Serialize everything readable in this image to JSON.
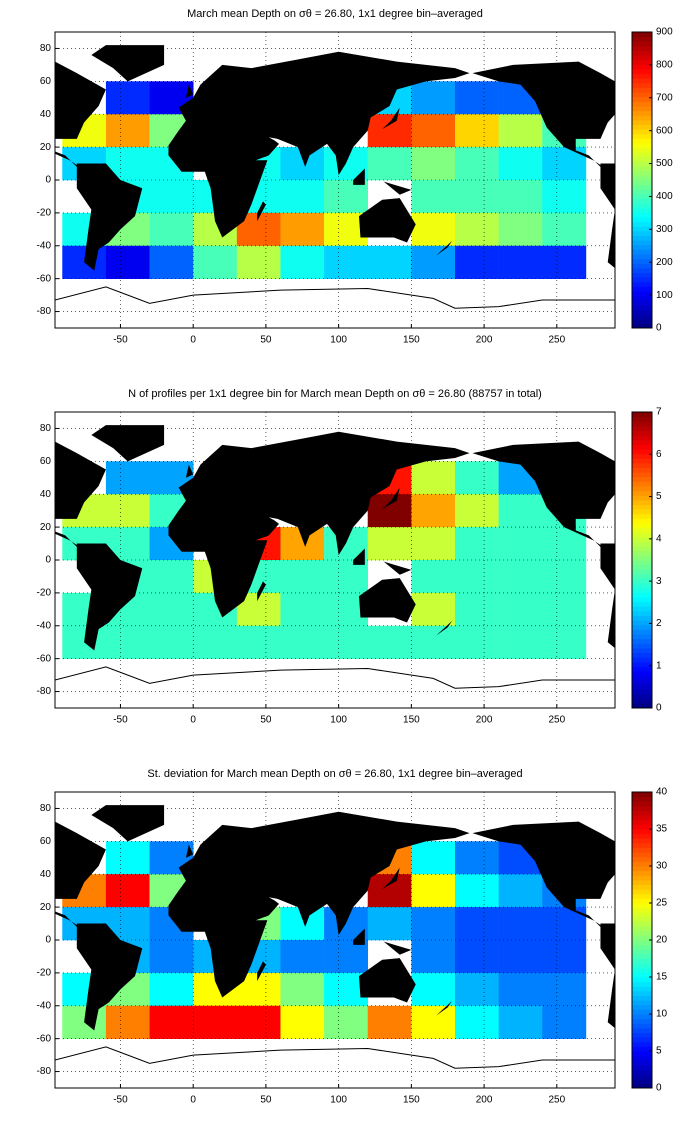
{
  "chart_data": [
    {
      "type": "heatmap",
      "title": "March mean Depth on σθ = 26.80, 1x1 degree bin–averaged",
      "x": [
        -75,
        -45,
        -15,
        15,
        45,
        75,
        105,
        135,
        165,
        195,
        225,
        255
      ],
      "y": [
        50,
        30,
        10,
        -10,
        -30,
        -50
      ],
      "z": [
        [
          null,
          150,
          100,
          null,
          null,
          null,
          null,
          300,
          250,
          200,
          200,
          null
        ],
        [
          550,
          650,
          450,
          null,
          null,
          null,
          null,
          750,
          700,
          600,
          500,
          400
        ],
        [
          300,
          350,
          350,
          null,
          350,
          300,
          350,
          400,
          450,
          400,
          350,
          300
        ],
        [
          null,
          350,
          350,
          350,
          350,
          350,
          400,
          null,
          400,
          400,
          400,
          350
        ],
        [
          350,
          450,
          400,
          500,
          700,
          650,
          550,
          null,
          550,
          500,
          450,
          400
        ],
        [
          150,
          100,
          200,
          400,
          500,
          350,
          300,
          300,
          250,
          150,
          150,
          150
        ]
      ],
      "xlim": [
        -95,
        290
      ],
      "ylim": [
        -90,
        90
      ],
      "xticks": [
        -50,
        0,
        50,
        100,
        150,
        200,
        250
      ],
      "yticks": [
        -80,
        -60,
        -40,
        -20,
        0,
        20,
        40,
        60,
        80
      ],
      "clim": [
        0,
        900
      ],
      "cticks": [
        0,
        100,
        200,
        300,
        400,
        500,
        600,
        700,
        800,
        900
      ],
      "colormap": "jet",
      "grid": true
    },
    {
      "type": "heatmap",
      "title": "N of profiles per 1x1 degree bin for March mean Depth on σθ = 26.80 (88757 in total)",
      "x": [
        -75,
        -45,
        -15,
        15,
        45,
        75,
        105,
        135,
        165,
        195,
        225,
        255
      ],
      "y": [
        50,
        30,
        10,
        -10,
        -30,
        -50
      ],
      "z": [
        [
          null,
          2,
          2,
          null,
          null,
          null,
          null,
          6,
          4,
          3,
          2,
          null
        ],
        [
          4,
          4,
          3,
          null,
          null,
          null,
          null,
          7,
          5,
          4,
          3,
          3
        ],
        [
          3,
          3,
          2,
          null,
          6,
          5,
          3,
          4,
          4,
          3,
          3,
          3
        ],
        [
          null,
          3,
          3,
          4,
          3,
          3,
          3,
          null,
          3,
          3,
          3,
          3
        ],
        [
          3,
          3,
          3,
          3,
          4,
          3,
          3,
          null,
          4,
          3,
          3,
          3
        ],
        [
          3,
          3,
          3,
          3,
          3,
          3,
          3,
          3,
          3,
          3,
          3,
          3
        ]
      ],
      "xlim": [
        -95,
        290
      ],
      "ylim": [
        -90,
        90
      ],
      "xticks": [
        -50,
        0,
        50,
        100,
        150,
        200,
        250
      ],
      "yticks": [
        -80,
        -60,
        -40,
        -20,
        0,
        20,
        40,
        60,
        80
      ],
      "clim": [
        0,
        7
      ],
      "cticks": [
        0,
        1,
        2,
        3,
        4,
        5,
        6,
        7
      ],
      "colormap": "jet",
      "grid": true
    },
    {
      "type": "heatmap",
      "title": "St. deviation for March mean Depth on σθ = 26.80, 1x1 degree bin–averaged",
      "x": [
        -75,
        -45,
        -15,
        15,
        45,
        75,
        105,
        135,
        165,
        195,
        225,
        255
      ],
      "y": [
        50,
        30,
        10,
        -10,
        -30,
        -50
      ],
      "z": [
        [
          null,
          15,
          10,
          null,
          null,
          null,
          null,
          30,
          15,
          10,
          8,
          null
        ],
        [
          30,
          35,
          20,
          null,
          null,
          null,
          null,
          38,
          25,
          15,
          12,
          10
        ],
        [
          12,
          12,
          10,
          null,
          20,
          15,
          10,
          12,
          10,
          8,
          8,
          8
        ],
        [
          null,
          12,
          10,
          12,
          12,
          10,
          10,
          null,
          10,
          8,
          8,
          8
        ],
        [
          15,
          20,
          15,
          25,
          25,
          20,
          15,
          null,
          15,
          12,
          10,
          10
        ],
        [
          20,
          30,
          35,
          35,
          35,
          25,
          20,
          30,
          25,
          15,
          12,
          10
        ]
      ],
      "xlim": [
        -95,
        290
      ],
      "ylim": [
        -90,
        90
      ],
      "xticks": [
        -50,
        0,
        50,
        100,
        150,
        200,
        250
      ],
      "yticks": [
        -80,
        -60,
        -40,
        -20,
        0,
        20,
        40,
        60,
        80
      ],
      "clim": [
        0,
        40
      ],
      "cticks": [
        0,
        5,
        10,
        15,
        20,
        25,
        30,
        35,
        40
      ],
      "colormap": "jet",
      "grid": true
    }
  ]
}
